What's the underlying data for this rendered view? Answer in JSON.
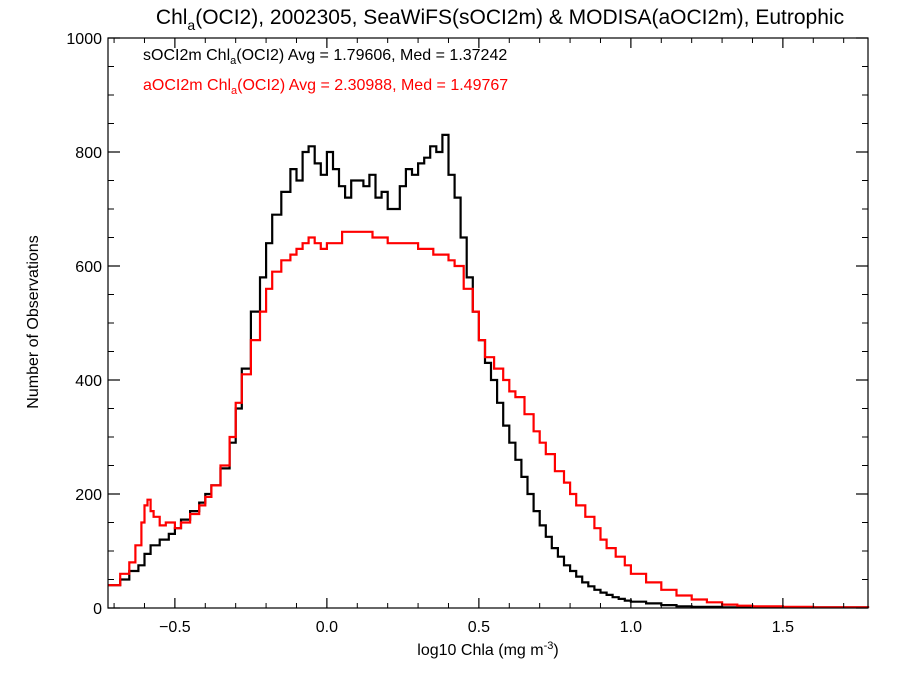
{
  "chart_data": {
    "type": "line",
    "title": {
      "prefix": "Chl",
      "sub": "a",
      "suffix": "(OCI2), 2002305, SeaWiFS(sOCI2m) & MODISA(aOCI2m), Eutrophic"
    },
    "xlabel": {
      "main": "log10 Chla (mg m",
      "sup": "-3",
      "close": ")"
    },
    "ylabel": "Number of Observations",
    "xlim": [
      -0.72,
      1.78
    ],
    "ylim": [
      0,
      1000
    ],
    "xticks": [
      -0.5,
      0.0,
      0.5,
      1.0,
      1.5
    ],
    "xtick_labels": [
      "−0.5",
      "0.0",
      "0.5",
      "1.0",
      "1.5"
    ],
    "yticks": [
      0,
      200,
      400,
      600,
      800,
      1000
    ],
    "ytick_labels": [
      "0",
      "200",
      "400",
      "600",
      "800",
      "1000"
    ],
    "grid": false,
    "legend_placement": "top-left",
    "annotations": [
      {
        "prefix": "sOCI2m Chl",
        "sub": "a",
        "suffix": "(OCI2) Avg = 1.79606, Med = 1.37242",
        "color": "#000000"
      },
      {
        "prefix": "aOCI2m Chl",
        "sub": "a",
        "suffix": "(OCI2) Avg = 2.30988, Med = 1.49767",
        "color": "#ff0000"
      }
    ],
    "series": [
      {
        "color": "#000000",
        "step": "post",
        "x": [
          -0.72,
          -0.68,
          -0.65,
          -0.62,
          -0.6,
          -0.58,
          -0.55,
          -0.52,
          -0.5,
          -0.48,
          -0.45,
          -0.42,
          -0.4,
          -0.38,
          -0.35,
          -0.32,
          -0.3,
          -0.28,
          -0.25,
          -0.22,
          -0.2,
          -0.18,
          -0.15,
          -0.12,
          -0.1,
          -0.08,
          -0.06,
          -0.04,
          -0.02,
          0.0,
          0.02,
          0.04,
          0.06,
          0.08,
          0.1,
          0.12,
          0.14,
          0.16,
          0.18,
          0.2,
          0.22,
          0.24,
          0.26,
          0.28,
          0.3,
          0.32,
          0.34,
          0.36,
          0.38,
          0.4,
          0.42,
          0.44,
          0.46,
          0.48,
          0.5,
          0.52,
          0.54,
          0.56,
          0.58,
          0.6,
          0.62,
          0.64,
          0.66,
          0.68,
          0.7,
          0.72,
          0.74,
          0.76,
          0.78,
          0.8,
          0.82,
          0.84,
          0.86,
          0.88,
          0.9,
          0.92,
          0.94,
          0.96,
          0.98,
          1.0,
          1.05,
          1.1,
          1.15,
          1.2,
          1.3,
          1.78
        ],
        "y": [
          40,
          50,
          65,
          75,
          95,
          110,
          120,
          130,
          140,
          155,
          170,
          185,
          200,
          215,
          245,
          290,
          350,
          420,
          520,
          580,
          640,
          690,
          730,
          770,
          750,
          800,
          810,
          780,
          760,
          800,
          770,
          740,
          720,
          750,
          750,
          740,
          760,
          720,
          730,
          700,
          700,
          740,
          770,
          760,
          780,
          790,
          810,
          800,
          830,
          760,
          720,
          650,
          580,
          520,
          470,
          430,
          400,
          360,
          320,
          290,
          260,
          230,
          200,
          170,
          145,
          125,
          105,
          90,
          75,
          65,
          55,
          45,
          38,
          32,
          27,
          23,
          19,
          16,
          13,
          11,
          8,
          5,
          3,
          2,
          1,
          0
        ]
      },
      {
        "color": "#ff0000",
        "step": "post",
        "x": [
          -0.72,
          -0.68,
          -0.65,
          -0.63,
          -0.61,
          -0.6,
          -0.59,
          -0.58,
          -0.57,
          -0.55,
          -0.53,
          -0.5,
          -0.48,
          -0.45,
          -0.42,
          -0.4,
          -0.38,
          -0.35,
          -0.32,
          -0.3,
          -0.28,
          -0.25,
          -0.22,
          -0.2,
          -0.18,
          -0.15,
          -0.12,
          -0.1,
          -0.08,
          -0.06,
          -0.04,
          -0.02,
          0.0,
          0.05,
          0.1,
          0.15,
          0.2,
          0.25,
          0.3,
          0.35,
          0.4,
          0.42,
          0.45,
          0.48,
          0.5,
          0.52,
          0.55,
          0.58,
          0.6,
          0.62,
          0.65,
          0.68,
          0.7,
          0.72,
          0.75,
          0.78,
          0.8,
          0.82,
          0.85,
          0.88,
          0.9,
          0.92,
          0.95,
          0.98,
          1.0,
          1.05,
          1.1,
          1.15,
          1.2,
          1.25,
          1.3,
          1.35,
          1.4,
          1.5,
          1.6,
          1.78
        ],
        "y": [
          40,
          60,
          80,
          110,
          150,
          180,
          190,
          170,
          160,
          145,
          150,
          140,
          150,
          165,
          180,
          195,
          215,
          250,
          300,
          360,
          410,
          470,
          520,
          560,
          590,
          610,
          620,
          630,
          640,
          650,
          640,
          630,
          640,
          660,
          660,
          650,
          640,
          640,
          630,
          620,
          610,
          600,
          560,
          520,
          470,
          440,
          420,
          400,
          380,
          370,
          340,
          310,
          290,
          270,
          240,
          220,
          200,
          180,
          160,
          140,
          120,
          105,
          90,
          75,
          60,
          45,
          32,
          22,
          15,
          10,
          6,
          4,
          3,
          2,
          1,
          0
        ]
      }
    ]
  }
}
